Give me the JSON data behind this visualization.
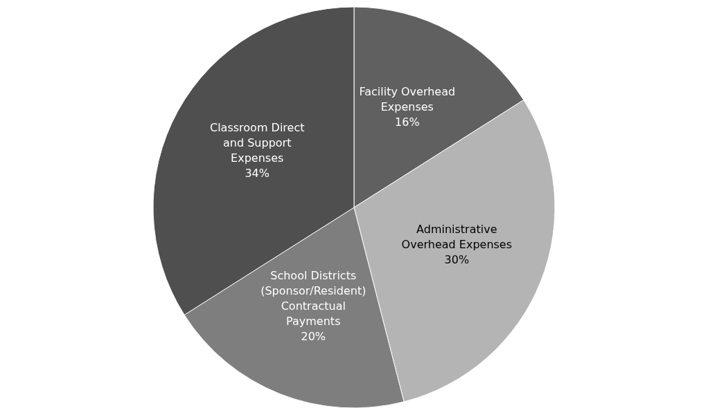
{
  "chart_data": {
    "type": "pie",
    "categories": [
      "Facility Overhead Expenses",
      "Administrative Overhead Expenses",
      "School Districts (Sponsor/Resident) Contractual Payments",
      "Classroom Direct and Support Expenses"
    ],
    "values": [
      16,
      30,
      20,
      34
    ],
    "colors": [
      "#606060",
      "#b4b4b4",
      "#7e7e7e",
      "#4f4f4f"
    ],
    "value_labels": [
      "16%",
      "30%",
      "20%",
      "34%"
    ]
  }
}
